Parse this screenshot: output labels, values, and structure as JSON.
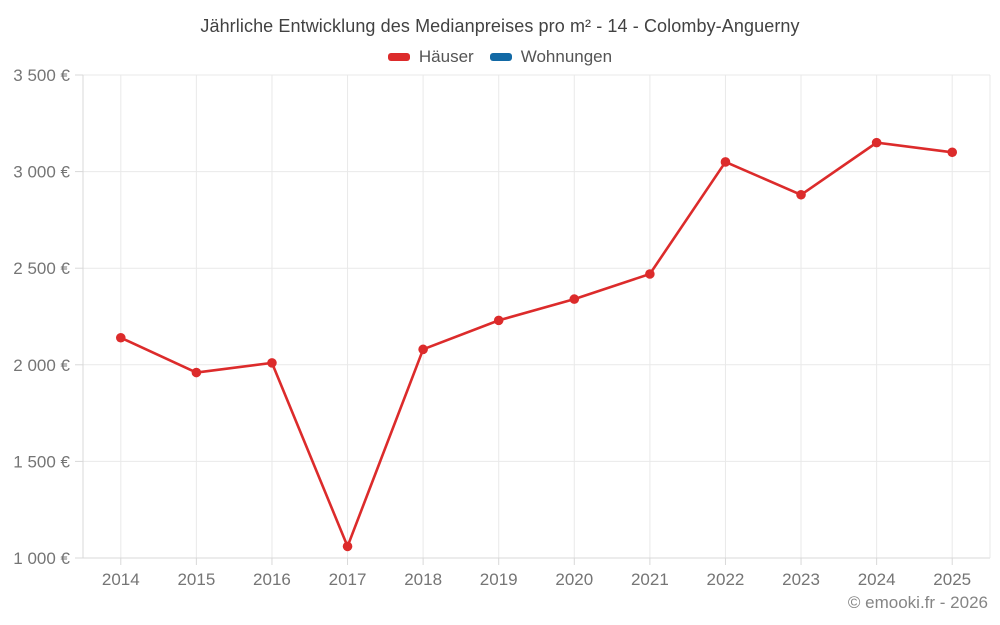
{
  "header": {
    "title": "Jährliche Entwicklung des Medianpreises pro m² - 14 - Colomby-Anguerny"
  },
  "footer": {
    "credit": "© emooki.fr - 2026"
  },
  "colors": {
    "houses_red": "#dc2b2b",
    "apartments_blue": "#1269a5",
    "gridline": "#e9e9e9",
    "axis_line": "#d8d8d8",
    "axis_label": "#757575"
  },
  "chart_data": {
    "type": "line",
    "title": "Jährliche Entwicklung des Medianpreises pro m² - 14 - Colomby-Anguerny",
    "categories": [
      "2014",
      "2015",
      "2016",
      "2017",
      "2018",
      "2019",
      "2020",
      "2021",
      "2022",
      "2023",
      "2024",
      "2025"
    ],
    "series": [
      {
        "name": "Häuser",
        "color": "#dc2b2b",
        "values": [
          2140,
          1960,
          2010,
          1060,
          2080,
          2230,
          2340,
          2470,
          3050,
          2880,
          3150,
          3100
        ]
      },
      {
        "name": "Wohnungen",
        "color": "#1269a5",
        "values": []
      }
    ],
    "xlabel": "",
    "ylabel": "",
    "ylim": [
      1000,
      3500
    ],
    "y_tick_values": [
      1000,
      1500,
      2000,
      2500,
      3000,
      3500
    ],
    "y_tick_labels": [
      "1 000 €",
      "1 500 €",
      "2 000 €",
      "2 500 €",
      "3 000 €",
      "3 500 €"
    ],
    "grid": true,
    "legend_position": "top"
  }
}
